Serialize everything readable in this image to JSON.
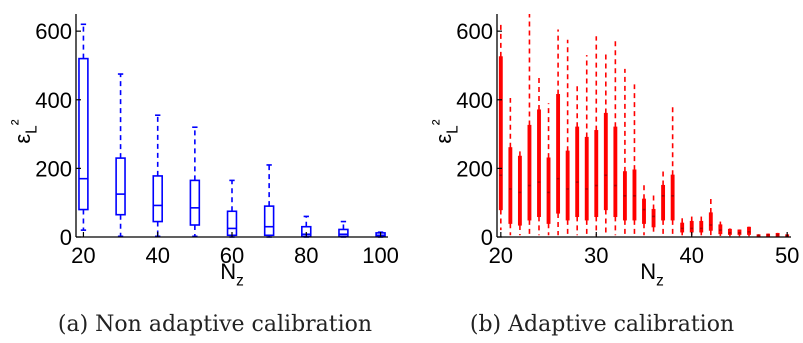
{
  "chart_data": [
    {
      "panel_label": "(a) Non adaptive calibration",
      "type": "box",
      "color": "#0000ff",
      "xlabel": "N_z",
      "ylabel": "ε_L²",
      "xlim": [
        18,
        102
      ],
      "ylim": [
        0,
        650
      ],
      "xticks": [
        20,
        40,
        60,
        80,
        100
      ],
      "yticks": [
        0,
        200,
        400,
        600
      ],
      "box_width": 2.4,
      "boxes": [
        {
          "x": 20,
          "whisker_low": 20,
          "q1": 80,
          "median": 170,
          "q3": 520,
          "whisker_high": 620
        },
        {
          "x": 30,
          "whisker_low": 2,
          "q1": 65,
          "median": 125,
          "q3": 230,
          "whisker_high": 475
        },
        {
          "x": 40,
          "whisker_low": 2,
          "q1": 45,
          "median": 92,
          "q3": 178,
          "whisker_high": 355
        },
        {
          "x": 50,
          "whisker_low": 2,
          "q1": 35,
          "median": 85,
          "q3": 165,
          "whisker_high": 320
        },
        {
          "x": 60,
          "whisker_low": 0,
          "q1": 5,
          "median": 25,
          "q3": 75,
          "whisker_high": 165
        },
        {
          "x": 70,
          "whisker_low": 0,
          "q1": 5,
          "median": 30,
          "q3": 90,
          "whisker_high": 210
        },
        {
          "x": 80,
          "whisker_low": 0,
          "q1": 2,
          "median": 8,
          "q3": 30,
          "whisker_high": 60
        },
        {
          "x": 90,
          "whisker_low": 0,
          "q1": 2,
          "median": 8,
          "q3": 22,
          "whisker_high": 45
        },
        {
          "x": 100,
          "whisker_low": 0,
          "q1": 2,
          "median": 5,
          "q3": 12,
          "whisker_high": 14
        }
      ]
    },
    {
      "panel_label": "(b) Adaptive calibration",
      "type": "box",
      "color": "#ff0000",
      "xlabel": "N_z",
      "ylabel": "ε_L²",
      "xlim": [
        19.6,
        50.4
      ],
      "ylim": [
        0,
        650
      ],
      "xticks": [
        20,
        30,
        40,
        50
      ],
      "yticks": [
        0,
        200,
        400,
        600
      ],
      "box_width": 0.28,
      "boxes": [
        {
          "x": 20,
          "whisker_low": 20,
          "q1": 80,
          "median": 180,
          "q3": 525,
          "whisker_high": 620
        },
        {
          "x": 21,
          "whisker_low": 5,
          "q1": 40,
          "median": 140,
          "q3": 260,
          "whisker_high": 405
        },
        {
          "x": 22,
          "whisker_low": 5,
          "q1": 35,
          "median": 130,
          "q3": 235,
          "whisker_high": 250
        },
        {
          "x": 23,
          "whisker_low": 5,
          "q1": 50,
          "median": 150,
          "q3": 325,
          "whisker_high": 650
        },
        {
          "x": 24,
          "whisker_low": 5,
          "q1": 60,
          "median": 160,
          "q3": 370,
          "whisker_high": 470
        },
        {
          "x": 25,
          "whisker_low": 5,
          "q1": 40,
          "median": 130,
          "q3": 230,
          "whisker_high": 390
        },
        {
          "x": 26,
          "whisker_low": 5,
          "q1": 70,
          "median": 170,
          "q3": 415,
          "whisker_high": 605
        },
        {
          "x": 27,
          "whisker_low": 5,
          "q1": 50,
          "median": 140,
          "q3": 250,
          "whisker_high": 575
        },
        {
          "x": 28,
          "whisker_low": 5,
          "q1": 60,
          "median": 160,
          "q3": 320,
          "whisker_high": 440
        },
        {
          "x": 29,
          "whisker_low": 5,
          "q1": 50,
          "median": 140,
          "q3": 290,
          "whisker_high": 530
        },
        {
          "x": 30,
          "whisker_low": 5,
          "q1": 60,
          "median": 150,
          "q3": 310,
          "whisker_high": 585
        },
        {
          "x": 31,
          "whisker_low": 5,
          "q1": 80,
          "median": 180,
          "q3": 360,
          "whisker_high": 535
        },
        {
          "x": 32,
          "whisker_low": 5,
          "q1": 60,
          "median": 150,
          "q3": 320,
          "whisker_high": 575
        },
        {
          "x": 33,
          "whisker_low": 5,
          "q1": 50,
          "median": 120,
          "q3": 190,
          "whisker_high": 490
        },
        {
          "x": 34,
          "whisker_low": 5,
          "q1": 50,
          "median": 120,
          "q3": 195,
          "whisker_high": 445
        },
        {
          "x": 35,
          "whisker_low": 5,
          "q1": 40,
          "median": 80,
          "q3": 110,
          "whisker_high": 155
        },
        {
          "x": 36,
          "whisker_low": 5,
          "q1": 30,
          "median": 60,
          "q3": 80,
          "whisker_high": 130
        },
        {
          "x": 37,
          "whisker_low": 5,
          "q1": 50,
          "median": 120,
          "q3": 150,
          "whisker_high": 200
        },
        {
          "x": 38,
          "whisker_low": 5,
          "q1": 50,
          "median": 120,
          "q3": 180,
          "whisker_high": 380
        },
        {
          "x": 39,
          "whisker_low": 5,
          "q1": 15,
          "median": 25,
          "q3": 40,
          "whisker_high": 60
        },
        {
          "x": 40,
          "whisker_low": 5,
          "q1": 15,
          "median": 25,
          "q3": 45,
          "whisker_high": 60
        },
        {
          "x": 41,
          "whisker_low": 5,
          "q1": 15,
          "median": 25,
          "q3": 45,
          "whisker_high": 65
        },
        {
          "x": 42,
          "whisker_low": 5,
          "q1": 20,
          "median": 35,
          "q3": 70,
          "whisker_high": 115
        },
        {
          "x": 43,
          "whisker_low": 3,
          "q1": 10,
          "median": 20,
          "q3": 35,
          "whisker_high": 45
        },
        {
          "x": 44,
          "whisker_low": 2,
          "q1": 8,
          "median": 12,
          "q3": 22,
          "whisker_high": 25
        },
        {
          "x": 45,
          "whisker_low": 2,
          "q1": 8,
          "median": 12,
          "q3": 20,
          "whisker_high": 22
        },
        {
          "x": 46,
          "whisker_low": 2,
          "q1": 8,
          "median": 15,
          "q3": 28,
          "whisker_high": 30
        },
        {
          "x": 47,
          "whisker_low": 1,
          "q1": 3,
          "median": 5,
          "q3": 6,
          "whisker_high": 8
        },
        {
          "x": 48,
          "whisker_low": 1,
          "q1": 3,
          "median": 6,
          "q3": 8,
          "whisker_high": 10
        },
        {
          "x": 49,
          "whisker_low": 1,
          "q1": 3,
          "median": 6,
          "q3": 10,
          "whisker_high": 12
        },
        {
          "x": 50,
          "whisker_low": 1,
          "q1": 2,
          "median": 4,
          "q3": 6,
          "whisker_high": 8
        }
      ]
    }
  ]
}
